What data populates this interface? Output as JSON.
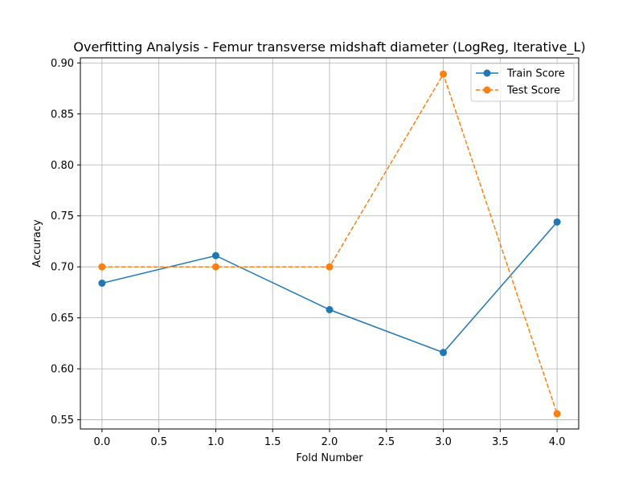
{
  "chart_data": {
    "type": "line",
    "title": "Overfitting Analysis - Femur transverse midshaft diameter (LogReg, Iterative_L)",
    "xlabel": "Fold Number",
    "ylabel": "Accuracy",
    "xlim": [
      -0.19,
      4.19
    ],
    "ylim": [
      0.541,
      0.905
    ],
    "xticks": [
      0.0,
      0.5,
      1.0,
      1.5,
      2.0,
      2.5,
      3.0,
      3.5,
      4.0
    ],
    "xtick_labels": [
      "0.0",
      "0.5",
      "1.0",
      "1.5",
      "2.0",
      "2.5",
      "3.0",
      "3.5",
      "4.0"
    ],
    "yticks": [
      0.55,
      0.6,
      0.65,
      0.7,
      0.75,
      0.8,
      0.85,
      0.9
    ],
    "ytick_labels": [
      "0.55",
      "0.60",
      "0.65",
      "0.70",
      "0.75",
      "0.80",
      "0.85",
      "0.90"
    ],
    "grid": true,
    "legend_position": "top-right",
    "x": [
      0,
      1,
      2,
      3,
      4
    ],
    "series": [
      {
        "name": "Train Score",
        "values": [
          0.684,
          0.711,
          0.658,
          0.616,
          0.744
        ],
        "color": "#1f77b4",
        "dash": "solid",
        "marker": "circle"
      },
      {
        "name": "Test Score",
        "values": [
          0.7,
          0.7,
          0.7,
          0.889,
          0.556
        ],
        "color": "#ff7f0e",
        "dash": "dashed",
        "marker": "circle"
      }
    ]
  }
}
